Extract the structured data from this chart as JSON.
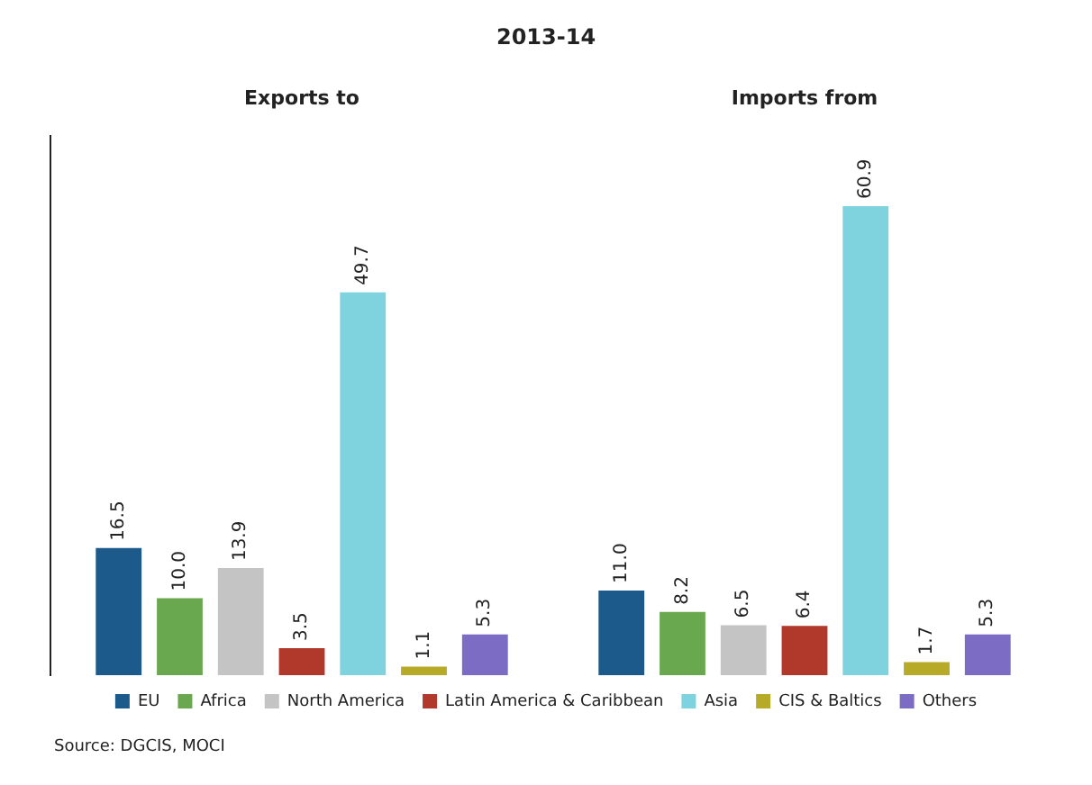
{
  "chart_data": {
    "type": "bar",
    "title": "2013-14",
    "categories": [
      "Exports to",
      "Imports from"
    ],
    "series": [
      {
        "name": "EU",
        "color": "#1d5a8c",
        "values": [
          16.5,
          11.0
        ],
        "value_labels": [
          "16.5",
          "11.0"
        ]
      },
      {
        "name": "Africa",
        "color": "#6aa84f",
        "values": [
          10.0,
          8.2
        ],
        "value_labels": [
          "10.0",
          "8.2"
        ]
      },
      {
        "name": "North America",
        "color": "#c4c4c4",
        "values": [
          13.9,
          6.5
        ],
        "value_labels": [
          "13.9",
          "6.5"
        ]
      },
      {
        "name": "Latin America & Caribbean",
        "color": "#b0392b",
        "values": [
          3.5,
          6.4
        ],
        "value_labels": [
          "3.5",
          "6.4"
        ]
      },
      {
        "name": "Asia",
        "color": "#7fd3df",
        "values": [
          49.7,
          60.9
        ],
        "value_labels": [
          "49.7",
          "60.9"
        ]
      },
      {
        "name": "CIS & Baltics",
        "color": "#b7aa28",
        "values": [
          1.1,
          1.7
        ],
        "value_labels": [
          "1.1",
          "1.7"
        ]
      },
      {
        "name": "Others",
        "color": "#7c6cc4",
        "values": [
          5.3,
          5.3
        ],
        "value_labels": [
          "5.3",
          "5.3"
        ]
      }
    ],
    "grid": false,
    "legend": "bottom",
    "tick_labels": "x",
    "annotations": [
      "Source: DGCIS, MOCI"
    ]
  }
}
